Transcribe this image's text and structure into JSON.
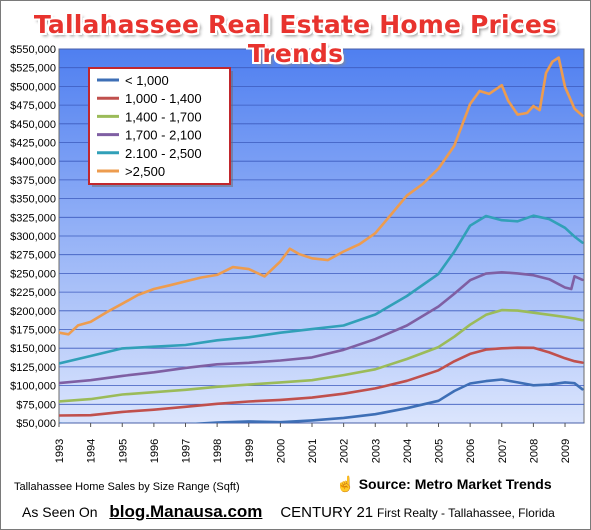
{
  "chart_data": {
    "type": "line",
    "title": "Tallahassee Real Estate Home Prices Trends",
    "x_ticks": [
      "1993",
      "1994",
      "1995",
      "1996",
      "1997",
      "1998",
      "1999",
      "2000",
      "2001",
      "2002",
      "2003",
      "2004",
      "2005",
      "2006",
      "2007",
      "2008",
      "2009"
    ],
    "xlim": [
      1993,
      2009.6
    ],
    "ylim": [
      50000,
      550000
    ],
    "y_ticks": [
      50000,
      75000,
      100000,
      125000,
      150000,
      175000,
      200000,
      225000,
      250000,
      275000,
      300000,
      325000,
      350000,
      375000,
      400000,
      425000,
      450000,
      475000,
      500000,
      525000,
      550000
    ],
    "y_tick_labels": [
      "$50,000",
      "$75,000",
      "$100,000",
      "$125,000",
      "$150,000",
      "$175,000",
      "$200,000",
      "$225,000",
      "$250,000",
      "$275,000",
      "$300,000",
      "$325,000",
      "$350,000",
      "$375,000",
      "$400,000",
      "$425,000",
      "$450,000",
      "$475,000",
      "$500,000",
      "$525,000",
      "$550,000"
    ],
    "grid": true,
    "legend_position": "top-left",
    "background": [
      "#4f7ff0",
      "#dbe5fd"
    ],
    "series": [
      {
        "name": "< 1,000",
        "color": "#3e6fb6",
        "x": [
          1993,
          1994,
          1995,
          1996,
          1997,
          1998,
          1999,
          2000,
          2001,
          2002,
          2003,
          2004,
          2005,
          2005.5,
          2006,
          2006.5,
          2007,
          2007.5,
          2008,
          2008.5,
          2009,
          2009.3,
          2009.55
        ],
        "y": [
          49000,
          47500,
          46500,
          47000,
          48000,
          50500,
          52000,
          51000,
          53500,
          57000,
          62000,
          70000,
          80000,
          93000,
          103000,
          106000,
          108000,
          104000,
          100000,
          101000,
          104000,
          103000,
          95000
        ]
      },
      {
        "name": "1,000 - 1,400",
        "color": "#c0504d",
        "x": [
          1993,
          1994,
          1995,
          1996,
          1997,
          1998,
          1999,
          2000,
          2001,
          2002,
          2003,
          2004,
          2005,
          2005.5,
          2006,
          2006.5,
          2007,
          2007.5,
          2008,
          2008.5,
          2009,
          2009.3,
          2009.55
        ],
        "y": [
          60000,
          60500,
          65000,
          68000,
          72000,
          76000,
          79000,
          81000,
          84000,
          89000,
          96000,
          106000,
          120000,
          132000,
          142000,
          148000,
          150000,
          151000,
          151000,
          145000,
          137000,
          133000,
          131000
        ]
      },
      {
        "name": "1,400 - 1,700",
        "color": "#9bbb59",
        "x": [
          1993,
          1994,
          1995,
          1996,
          1997,
          1998,
          1999,
          2000,
          2001,
          2002,
          2003,
          2004,
          2005,
          2005.5,
          2006,
          2006.5,
          2007,
          2007.5,
          2008,
          2008.5,
          2009,
          2009.3,
          2009.55
        ],
        "y": [
          79000,
          82000,
          88000,
          91000,
          94000,
          98000,
          101000,
          104000,
          107000,
          114000,
          122000,
          136000,
          152000,
          166000,
          182000,
          195000,
          201000,
          200000,
          197000,
          194000,
          191000,
          189000,
          187000
        ]
      },
      {
        "name": "1,700 - 2,100",
        "color": "#7f5fa3",
        "x": [
          1993,
          1994,
          1995,
          1996,
          1997,
          1998,
          1999,
          2000,
          2001,
          2002,
          2003,
          2004,
          2005,
          2005.5,
          2006,
          2006.5,
          2007,
          2007.5,
          2008,
          2008.5,
          2009,
          2009.2,
          2009.3,
          2009.55
        ],
        "y": [
          103000,
          107000,
          113000,
          118000,
          124000,
          129000,
          131000,
          134000,
          138000,
          148000,
          162000,
          180000,
          205000,
          222000,
          240000,
          249000,
          251000,
          250000,
          248000,
          243000,
          232000,
          230000,
          247000,
          242000
        ]
      },
      {
        "name": "2.100 - 2,500",
        "color": "#31a0b8",
        "x": [
          1993,
          1994,
          1995,
          1996,
          1997,
          1998,
          1999,
          2000,
          2001,
          2002,
          2003,
          2004,
          2005,
          2005.5,
          2006,
          2006.5,
          2007,
          2007.5,
          2008,
          2008.5,
          2009,
          2009.3,
          2009.55
        ],
        "y": [
          130000,
          140000,
          150000,
          152000,
          154000,
          160000,
          164000,
          170000,
          175000,
          180000,
          195000,
          220000,
          250000,
          280000,
          315000,
          328000,
          322000,
          320000,
          327000,
          322000,
          310000,
          298000,
          290000
        ]
      },
      {
        "name": ">2,500",
        "color": "#ed9c4f",
        "x": [
          1993,
          1993.3,
          1993.6,
          1994,
          1994.5,
          1995,
          1995.5,
          1996,
          1996.5,
          1997,
          1997.5,
          1998,
          1998.5,
          1999,
          1999.5,
          2000,
          2000.3,
          2000.6,
          2001,
          2001.5,
          2002,
          2002.5,
          2003,
          2003.5,
          2004,
          2004.5,
          2005,
          2005.5,
          2006,
          2006.3,
          2006.6,
          2007,
          2007.2,
          2007.5,
          2007.8,
          2008,
          2008.2,
          2008.4,
          2008.6,
          2008.8,
          2009,
          2009.3,
          2009.55
        ],
        "y": [
          170000,
          168000,
          180000,
          185000,
          198000,
          210000,
          222000,
          230000,
          235000,
          240000,
          245000,
          248000,
          258000,
          255000,
          245000,
          265000,
          282000,
          275000,
          270000,
          268000,
          280000,
          290000,
          305000,
          330000,
          355000,
          370000,
          390000,
          420000,
          475000,
          492000,
          488000,
          500000,
          480000,
          462000,
          465000,
          475000,
          470000,
          520000,
          535000,
          540000,
          500000,
          470000,
          460000
        ]
      }
    ]
  },
  "footer": {
    "caption": "Tallahassee Home Sales by Size Range (Sqft)",
    "source_icon": "hand-pointer-icon",
    "source": "Source: Metro Market Trends",
    "as_seen_on": "As Seen On",
    "blog": "blog.Manausa.com",
    "brand": "CENTURY 21",
    "brand_detail": "First Realty - Tallahassee, Florida"
  }
}
